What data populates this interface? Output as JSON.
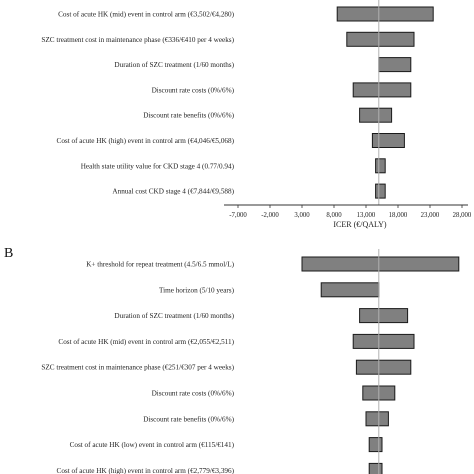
{
  "chart_data": [
    {
      "type": "bar",
      "orientation": "horizontal",
      "subtype": "tornado",
      "panel_label": "",
      "base_value": 15000,
      "categories": [
        "Cost of acute HK (mid) event in control arm (€3,502/€4,280)",
        "SZC treatment cost in maintenance phase (€336/€410 per 4 weeks)",
        "Duration of SZC treatment (1/60 months)",
        "Discount rate costs (0%/6%)",
        "Discount rate benefits (0%/6%)",
        "Cost of acute HK (high) event in control arm (€4,046/€5,068)",
        "Health state utility value for CKD stage 4 (0.77/0.94)",
        "Annual cost CKD stage 4 (€7,844/€9,588)"
      ],
      "ranges": [
        [
          8500,
          23500
        ],
        [
          10000,
          20500
        ],
        [
          15000,
          20000
        ],
        [
          11000,
          20000
        ],
        [
          12000,
          17000
        ],
        [
          14000,
          19000
        ],
        [
          14500,
          16000
        ],
        [
          14500,
          16000
        ]
      ],
      "xlabel": "ICER (€/QALY)",
      "xlim": [
        -7000,
        28000
      ],
      "xticks": [
        "-7,000",
        "-2,000",
        "3,000",
        "8,000",
        "13,000",
        "18,000",
        "23,000",
        "28,000"
      ]
    },
    {
      "type": "bar",
      "orientation": "horizontal",
      "subtype": "tornado",
      "panel_label": "B",
      "base_value": 15000,
      "categories": [
        "K+ threshold for repeat treatment (4.5/6.5 mmol/L)",
        "Time horizon (5/10 years)",
        "Duration of SZC treatment (1/60 months)",
        "Cost of acute HK (mid) event in control arm (€2,055/€2,511)",
        "SZC treatment cost in maintenance phase (€251/€307 per 4 weeks)",
        "Discount rate costs (0%/6%)",
        "Discount rate benefits (0%/6%)",
        "Cost of acute HK (low) event in control arm (€115/€141)",
        "Cost of acute HK (high) event in control arm (€2,779/€3,396)"
      ],
      "ranges": [
        [
          3000,
          27500
        ],
        [
          6000,
          15000
        ],
        [
          12000,
          19500
        ],
        [
          11000,
          20500
        ],
        [
          11500,
          20000
        ],
        [
          12500,
          17500
        ],
        [
          13000,
          16500
        ],
        [
          13500,
          15500
        ],
        [
          13500,
          15500
        ]
      ]
    }
  ]
}
